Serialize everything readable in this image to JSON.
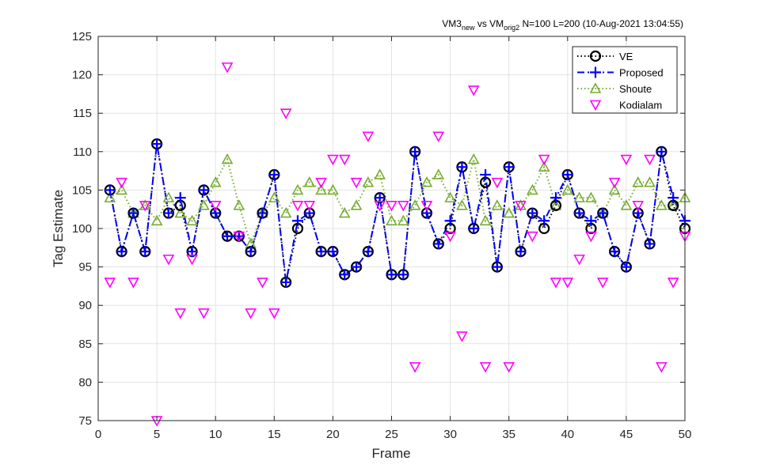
{
  "chart_data": {
    "type": "line",
    "title": {
      "p1": "VM3",
      "p1_sub": "new",
      "p2": " vs VM",
      "p2_sub": "orig2",
      "p3": " N=100 L=200 (10-Aug-2021 13:04:55)"
    },
    "xlabel": "Frame",
    "ylabel": "Tag Estimate",
    "xlim": [
      0,
      50
    ],
    "ylim": [
      75,
      125
    ],
    "xticks": [
      0,
      5,
      10,
      15,
      20,
      25,
      30,
      35,
      40,
      45,
      50
    ],
    "yticks": [
      75,
      80,
      85,
      90,
      95,
      100,
      105,
      110,
      115,
      120,
      125
    ],
    "grid": true,
    "legend_position": "top-right",
    "x": [
      1,
      2,
      3,
      4,
      5,
      6,
      7,
      8,
      9,
      10,
      11,
      12,
      13,
      14,
      15,
      16,
      17,
      18,
      19,
      20,
      21,
      22,
      23,
      24,
      25,
      26,
      27,
      28,
      29,
      30,
      31,
      32,
      33,
      34,
      35,
      36,
      37,
      38,
      39,
      40,
      41,
      42,
      43,
      44,
      45,
      46,
      47,
      48,
      49,
      50
    ],
    "series": [
      {
        "name": "VE",
        "color": "#000000",
        "line": "dotted",
        "marker": "circle",
        "values": [
          105,
          97,
          102,
          97,
          111,
          102,
          103,
          97,
          105,
          102,
          99,
          99,
          97,
          102,
          107,
          93,
          100,
          102,
          97,
          97,
          94,
          95,
          97,
          104,
          94,
          94,
          110,
          102,
          98,
          100,
          108,
          100,
          106,
          95,
          108,
          97,
          102,
          100,
          103,
          107,
          102,
          100,
          102,
          97,
          95,
          102,
          98,
          110,
          103,
          100
        ]
      },
      {
        "name": "Proposed",
        "color": "#0000ff",
        "line": "dashdot",
        "marker": "plus",
        "values": [
          105,
          97,
          102,
          97,
          111,
          102,
          104,
          97,
          105,
          102,
          99,
          99,
          97,
          102,
          107,
          93,
          101,
          102,
          97,
          97,
          94,
          95,
          97,
          104,
          94,
          94,
          110,
          102,
          98,
          101,
          108,
          100,
          107,
          95,
          108,
          97,
          102,
          101,
          104,
          107,
          102,
          101,
          102,
          97,
          95,
          102,
          98,
          110,
          104,
          101
        ]
      },
      {
        "name": "Shoute",
        "color": "#77ac30",
        "line": "dotted",
        "marker": "triangle-up",
        "values": [
          104,
          105,
          102,
          103,
          101,
          104,
          102,
          101,
          103,
          106,
          109,
          103,
          98,
          102,
          104,
          102,
          105,
          106,
          105,
          105,
          102,
          103,
          106,
          107,
          101,
          101,
          103,
          106,
          107,
          104,
          103,
          109,
          101,
          103,
          102,
          103,
          105,
          108,
          103,
          105,
          104,
          104,
          102,
          105,
          103,
          106,
          106,
          103,
          103,
          104
        ]
      },
      {
        "name": "Kodialam",
        "color": "#ff00ff",
        "line": "none",
        "marker": "triangle-down",
        "values": [
          93,
          106,
          93,
          103,
          75,
          96,
          89,
          96,
          89,
          103,
          121,
          99,
          89,
          93,
          89,
          115,
          103,
          103,
          106,
          109,
          109,
          106,
          112,
          103,
          103,
          103,
          82,
          103,
          112,
          99,
          86,
          118,
          82,
          106,
          82,
          103,
          99,
          109,
          93,
          93,
          96,
          99,
          93,
          106,
          109,
          103,
          109,
          82,
          93,
          99
        ]
      }
    ]
  }
}
